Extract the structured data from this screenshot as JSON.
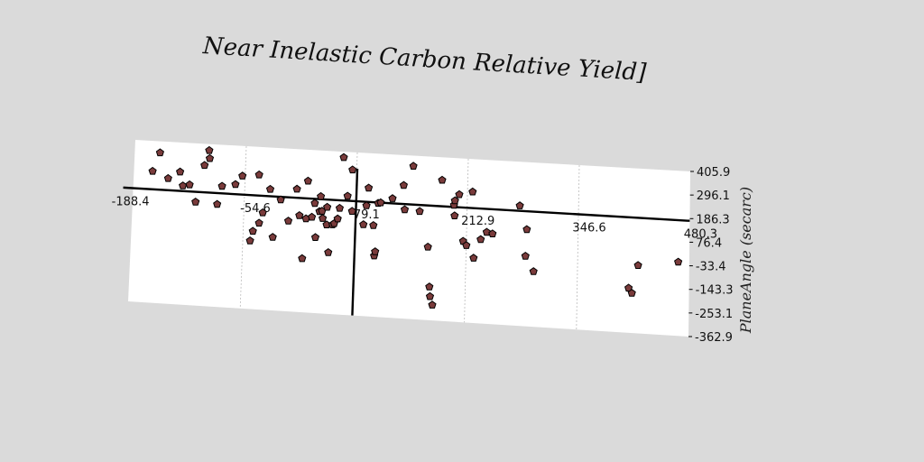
{
  "chart_data": {
    "type": "scatter",
    "title": "Near Inelastic Carbon Relative Yield]",
    "ylabel": "PlaneAngle (secarc)",
    "xlabel": "",
    "x_ticks": [
      "-188.4",
      "-54.6",
      "79.1",
      "212.9",
      "346.6",
      "480.3"
    ],
    "y_ticks": [
      "405.9",
      "296.1",
      "186.3",
      "76.4",
      "-33.4",
      "-143.3",
      "-253.1",
      "-362.9"
    ],
    "xlim": [
      -188.4,
      480.3
    ],
    "ylim": [
      -362.9,
      405.9
    ],
    "grid": "vertical",
    "marker": "pentagon",
    "marker_color": "#7a3b3b",
    "points": [
      {
        "x": -158,
        "y": 352
      },
      {
        "x": -166,
        "y": 262
      },
      {
        "x": -147,
        "y": 232
      },
      {
        "x": -133,
        "y": 266
      },
      {
        "x": -129,
        "y": 201
      },
      {
        "x": -121,
        "y": 208
      },
      {
        "x": -113,
        "y": 128
      },
      {
        "x": -104,
        "y": 304
      },
      {
        "x": -99,
        "y": 376
      },
      {
        "x": -98,
        "y": 338
      },
      {
        "x": -87,
        "y": 123
      },
      {
        "x": -82,
        "y": 210
      },
      {
        "x": -66,
        "y": 222
      },
      {
        "x": -58,
        "y": 264
      },
      {
        "x": -46,
        "y": -40
      },
      {
        "x": -43,
        "y": 6
      },
      {
        "x": -38,
        "y": 274
      },
      {
        "x": -36,
        "y": 46
      },
      {
        "x": -32,
        "y": 96
      },
      {
        "x": -24,
        "y": 209
      },
      {
        "x": -19,
        "y": -17
      },
      {
        "x": -11,
        "y": 162
      },
      {
        "x": -1,
        "y": 64
      },
      {
        "x": 8,
        "y": 217
      },
      {
        "x": 12,
        "y": 93
      },
      {
        "x": 17,
        "y": -109
      },
      {
        "x": 20,
        "y": 80
      },
      {
        "x": 21,
        "y": 258
      },
      {
        "x": 27,
        "y": 89
      },
      {
        "x": 30,
        "y": 155
      },
      {
        "x": 32,
        "y": -6
      },
      {
        "x": 36,
        "y": 118
      },
      {
        "x": 37,
        "y": 189
      },
      {
        "x": 39,
        "y": 120
      },
      {
        "x": 40,
        "y": 86
      },
      {
        "x": 45,
        "y": 140
      },
      {
        "x": 45,
        "y": 57
      },
      {
        "x": 48,
        "y": -73
      },
      {
        "x": 52,
        "y": 59
      },
      {
        "x": 54,
        "y": 65
      },
      {
        "x": 58,
        "y": 88
      },
      {
        "x": 60,
        "y": 139
      },
      {
        "x": 63,
        "y": 379
      },
      {
        "x": 69,
        "y": 198
      },
      {
        "x": 74,
        "y": 323
      },
      {
        "x": 75,
        "y": 128
      },
      {
        "x": 89,
        "y": 68
      },
      {
        "x": 92,
        "y": 158
      },
      {
        "x": 94,
        "y": 242
      },
      {
        "x": 101,
        "y": 67
      },
      {
        "x": 103,
        "y": -76
      },
      {
        "x": 104,
        "y": -56
      },
      {
        "x": 106,
        "y": 173
      },
      {
        "x": 109,
        "y": 176
      },
      {
        "x": 123,
        "y": 199
      },
      {
        "x": 136,
        "y": 264
      },
      {
        "x": 138,
        "y": 150
      },
      {
        "x": 147,
        "y": 357
      },
      {
        "x": 156,
        "y": 146
      },
      {
        "x": 167,
        "y": -19
      },
      {
        "x": 170,
        "y": -206
      },
      {
        "x": 171,
        "y": -251
      },
      {
        "x": 174,
        "y": -290
      },
      {
        "x": 182,
        "y": 299
      },
      {
        "x": 197,
        "y": 185
      },
      {
        "x": 198,
        "y": 135
      },
      {
        "x": 198,
        "y": 206
      },
      {
        "x": 203,
        "y": 236
      },
      {
        "x": 209,
        "y": 18
      },
      {
        "x": 213,
        "y": -1
      },
      {
        "x": 219,
        "y": 252
      },
      {
        "x": 222,
        "y": -58
      },
      {
        "x": 230,
        "y": 31
      },
      {
        "x": 237,
        "y": 67
      },
      {
        "x": 244,
        "y": 61
      },
      {
        "x": 276,
        "y": 200
      },
      {
        "x": 284,
        "y": -34
      },
      {
        "x": 285,
        "y": 91
      },
      {
        "x": 294,
        "y": -104
      },
      {
        "x": 408,
        "y": -154
      },
      {
        "x": 412,
        "y": -177
      },
      {
        "x": 419,
        "y": -46
      },
      {
        "x": 467,
        "y": -19
      }
    ]
  }
}
